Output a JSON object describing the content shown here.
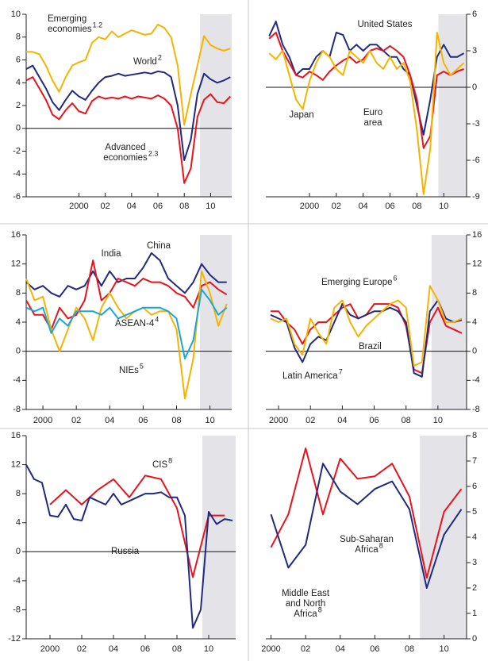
{
  "chart_data": [
    {
      "type": "line",
      "xlim": [
        1996,
        2011.6
      ],
      "ylim": [
        -6,
        10
      ],
      "yticks": [
        10,
        8,
        6,
        4,
        2,
        0,
        -2,
        -4,
        -6
      ],
      "y_axis_side": "left",
      "xticks": [
        2000,
        {
          "value": 2002,
          "label": "02"
        },
        {
          "value": 2004,
          "label": "04"
        },
        {
          "value": 2006,
          "label": "06"
        },
        {
          "value": 2008,
          "label": "08"
        },
        {
          "value": 2010,
          "label": "10"
        }
      ],
      "projection_shade": [
        2009.2,
        2011.6
      ],
      "zero_line": true,
      "x": [
        1996,
        1996.5,
        1997,
        1997.5,
        1998,
        1998.5,
        1999,
        1999.5,
        2000,
        2000.5,
        2001,
        2001.5,
        2002,
        2002.5,
        2003,
        2003.5,
        2004,
        2004.5,
        2005,
        2005.5,
        2006,
        2006.5,
        2007,
        2007.5,
        2008,
        2008.5,
        2009,
        2009.5,
        2010,
        2010.5,
        2011,
        2011.5
      ],
      "series": [
        {
          "name": "Emerging\neconomies",
          "note": "1.2",
          "color": "#f5b400",
          "values": [
            6.7,
            6.7,
            6.5,
            5.5,
            4.2,
            3.2,
            4.5,
            5.5,
            5.8,
            6.0,
            7.5,
            8.0,
            7.8,
            8.5,
            8.0,
            8.3,
            8.6,
            8.4,
            8.2,
            8.3,
            9.1,
            8.8,
            8.0,
            5.5,
            0.3,
            3.0,
            5.5,
            8.1,
            7.3,
            7.0,
            6.8,
            7.0
          ]
        },
        {
          "name": "World",
          "note": "2",
          "color": "#1f2a80",
          "values": [
            5.2,
            5.5,
            4.5,
            3.5,
            2.3,
            1.6,
            2.5,
            3.3,
            2.8,
            2.5,
            3.3,
            4.0,
            4.5,
            4.6,
            4.8,
            4.6,
            4.7,
            4.8,
            4.9,
            4.8,
            5.0,
            4.9,
            4.5,
            2.0,
            -2.8,
            -1.0,
            3.0,
            4.8,
            4.3,
            4.0,
            4.2,
            4.5
          ]
        },
        {
          "name": "Advanced\neconomies",
          "note": "2.3",
          "color": "#e8131d",
          "values": [
            4.2,
            4.5,
            3.5,
            2.5,
            1.2,
            0.8,
            1.6,
            2.2,
            1.5,
            1.3,
            2.4,
            2.8,
            2.6,
            2.7,
            2.6,
            2.8,
            2.6,
            2.8,
            2.7,
            2.6,
            2.9,
            2.6,
            2.0,
            0.0,
            -4.8,
            -3.5,
            1.0,
            2.5,
            3.0,
            2.3,
            2.2,
            2.8
          ]
        }
      ]
    },
    {
      "type": "line",
      "xlim": [
        1996.75,
        2011.7
      ],
      "ylim": [
        -9,
        6
      ],
      "yticks": [
        6,
        3,
        0,
        -3,
        -6,
        -9
      ],
      "y_axis_side": "right",
      "xticks": [
        2000,
        {
          "value": 2002,
          "label": "02"
        },
        {
          "value": 2004,
          "label": "04"
        },
        {
          "value": 2006,
          "label": "06"
        },
        {
          "value": 2008,
          "label": "08"
        },
        {
          "value": 2010,
          "label": "10"
        }
      ],
      "projection_shade": [
        2009.6,
        2011.7
      ],
      "zero_line": true,
      "x": [
        1997,
        1997.5,
        1998,
        1998.5,
        1999,
        1999.5,
        2000,
        2000.5,
        2001,
        2001.5,
        2002,
        2002.5,
        2003,
        2003.5,
        2004,
        2004.5,
        2005,
        2005.5,
        2006,
        2006.5,
        2007,
        2007.5,
        2008,
        2008.5,
        2009,
        2009.5,
        2010,
        2010.5,
        2011,
        2011.5
      ],
      "series": [
        {
          "name": "United States",
          "color": "#1f2a80",
          "values": [
            4.2,
            5.4,
            3.5,
            2.5,
            1.0,
            1.5,
            1.5,
            2.5,
            3.0,
            2.5,
            4.5,
            4.3,
            3.0,
            3.5,
            3.0,
            3.5,
            3.5,
            3.0,
            2.5,
            2.5,
            1.5,
            1.0,
            -1.5,
            -3.9,
            -1.0,
            2.5,
            3.5,
            2.5,
            2.5,
            2.8
          ]
        },
        {
          "name": "Euro\narea",
          "color": "#e8131d",
          "values": [
            4.0,
            4.5,
            3.0,
            2.0,
            1.0,
            0.8,
            1.3,
            1.0,
            0.6,
            1.3,
            1.8,
            2.2,
            2.5,
            2.0,
            2.3,
            3.0,
            3.2,
            3.0,
            3.4,
            3.0,
            2.5,
            1.0,
            -1.0,
            -5.0,
            -4.0,
            1.0,
            1.3,
            1.0,
            1.3,
            1.5
          ]
        },
        {
          "name": "Japan",
          "color": "#f5b400",
          "values": [
            2.8,
            2.3,
            3.0,
            1.0,
            -1.0,
            -1.8,
            0.5,
            2.0,
            3.0,
            2.5,
            1.5,
            1.0,
            3.0,
            2.5,
            2.0,
            3.0,
            2.0,
            1.5,
            2.5,
            1.5,
            2.0,
            0.5,
            -3.5,
            -8.8,
            -5.0,
            4.5,
            2.0,
            1.0,
            1.5,
            2.0
          ]
        }
      ]
    },
    {
      "type": "line",
      "xlim": [
        1999,
        2011.3
      ],
      "ylim": [
        -8,
        16
      ],
      "yticks": [
        16,
        12,
        8,
        4,
        0,
        -4,
        -8
      ],
      "y_axis_side": "left",
      "xticks": [
        2000,
        {
          "value": 2002,
          "label": "02"
        },
        {
          "value": 2004,
          "label": "04"
        },
        {
          "value": 2006,
          "label": "06"
        },
        {
          "value": 2008,
          "label": "08"
        },
        {
          "value": 2010,
          "label": "10"
        }
      ],
      "projection_shade": [
        2009.4,
        2011.3
      ],
      "zero_line": true,
      "x": [
        1999,
        1999.5,
        2000,
        2000.5,
        2001,
        2001.5,
        2002,
        2002.5,
        2003,
        2003.5,
        2004,
        2004.5,
        2005,
        2005.5,
        2006,
        2006.5,
        2007,
        2007.5,
        2008,
        2008.5,
        2009,
        2009.5,
        2010,
        2010.5,
        2011
      ],
      "series": [
        {
          "name": "China",
          "color": "#1f2a80",
          "values": [
            9.5,
            8.5,
            9.0,
            8.0,
            7.5,
            9.0,
            8.5,
            9.0,
            11.0,
            9.0,
            11.0,
            9.5,
            10.0,
            10.0,
            11.5,
            13.5,
            12.5,
            10.0,
            9.0,
            8.0,
            9.5,
            12.0,
            10.5,
            9.5,
            9.5
          ]
        },
        {
          "name": "India",
          "color": "#e8131d",
          "values": [
            7.0,
            5.0,
            5.0,
            3.0,
            6.0,
            4.5,
            5.0,
            7.0,
            12.5,
            7.0,
            8.0,
            10.0,
            9.5,
            9.0,
            10.0,
            9.5,
            9.5,
            9.0,
            8.0,
            7.5,
            6.0,
            9.0,
            9.5,
            8.5,
            7.8
          ]
        },
        {
          "name": "NIEs",
          "note": "5",
          "color": "#f5b400",
          "values": [
            10.0,
            7.0,
            7.5,
            3.0,
            0.0,
            3.0,
            6.0,
            4.5,
            1.5,
            6.0,
            8.0,
            6.0,
            4.5,
            5.5,
            6.0,
            5.0,
            5.5,
            5.5,
            3.0,
            -6.5,
            -1.0,
            11.0,
            8.0,
            3.5,
            6.5
          ]
        },
        {
          "name": "ASEAN-4",
          "note": "4",
          "color": "#1aa7d8",
          "values": [
            6.0,
            5.5,
            6.0,
            2.5,
            4.5,
            3.5,
            5.5,
            5.5,
            5.5,
            5.0,
            6.0,
            4.5,
            5.0,
            5.5,
            6.0,
            6.0,
            6.0,
            5.5,
            4.5,
            -1.0,
            1.5,
            8.5,
            7.0,
            5.0,
            6.0
          ]
        }
      ]
    },
    {
      "type": "line",
      "xlim": [
        1999.2,
        2011.8
      ],
      "ylim": [
        -8,
        16
      ],
      "yticks": [
        16,
        12,
        8,
        4,
        0,
        -4,
        -8
      ],
      "y_axis_side": "right",
      "xticks": [
        2000,
        {
          "value": 2002,
          "label": "02"
        },
        {
          "value": 2004,
          "label": "04"
        },
        {
          "value": 2006,
          "label": "06"
        },
        {
          "value": 2008,
          "label": "08"
        },
        {
          "value": 2010,
          "label": "10"
        }
      ],
      "projection_shade": [
        2009.6,
        2011.8
      ],
      "zero_line": true,
      "x": [
        1999.5,
        2000,
        2000.5,
        2001,
        2001.5,
        2002,
        2002.5,
        2003,
        2003.5,
        2004,
        2004.5,
        2005,
        2005.5,
        2006,
        2006.5,
        2007,
        2007.5,
        2008,
        2008.5,
        2009,
        2009.5,
        2010,
        2010.5,
        2011,
        2011.5
      ],
      "series": [
        {
          "name": "Emerging Europe",
          "note": "6",
          "color": "#e8131d",
          "values": [
            5.5,
            5.5,
            4.0,
            3.0,
            1.0,
            3.0,
            4.0,
            4.0,
            5.0,
            6.0,
            6.5,
            4.5,
            5.0,
            6.5,
            6.5,
            6.5,
            6.0,
            3.5,
            -2.5,
            -3.0,
            4.0,
            6.0,
            3.5,
            3.0,
            2.5
          ]
        },
        {
          "name": "Latin America",
          "note": "7",
          "color": "#1f2a80",
          "values": [
            5.0,
            4.5,
            4.0,
            0.5,
            -1.5,
            1.0,
            2.0,
            1.5,
            4.0,
            6.5,
            5.0,
            4.5,
            5.0,
            5.5,
            5.5,
            6.0,
            5.5,
            4.0,
            -3.0,
            -3.5,
            5.5,
            7.0,
            4.5,
            4.0,
            4.3
          ]
        },
        {
          "name": "Brazil",
          "color": "#f5b400",
          "values": [
            4.5,
            4.0,
            4.5,
            1.0,
            -0.5,
            4.5,
            2.5,
            1.0,
            6.0,
            7.0,
            4.0,
            2.0,
            3.5,
            4.5,
            5.5,
            6.5,
            7.0,
            6.0,
            -2.0,
            -1.5,
            9.0,
            7.0,
            4.0,
            4.0,
            4.5
          ]
        }
      ]
    },
    {
      "type": "line",
      "xlim": [
        1998.5,
        2011.7
      ],
      "ylim": [
        -12,
        16
      ],
      "yticks": [
        16,
        12,
        8,
        4,
        0,
        -4,
        -8,
        -12
      ],
      "y_axis_side": "left",
      "xticks": [
        2000,
        {
          "value": 2002,
          "label": "02"
        },
        {
          "value": 2004,
          "label": "04"
        },
        {
          "value": 2006,
          "label": "06"
        },
        {
          "value": 2008,
          "label": "08"
        },
        {
          "value": 2010,
          "label": "10"
        }
      ],
      "projection_shade": [
        2009.6,
        2011.7
      ],
      "zero_line": true,
      "x": [
        1998.5,
        1999,
        1999.5,
        2000,
        2000.5,
        2001,
        2001.5,
        2002,
        2002.5,
        2003,
        2003.5,
        2004,
        2004.5,
        2005,
        2005.5,
        2006,
        2006.5,
        2007,
        2007.5,
        2008,
        2008.5,
        2009,
        2009.5,
        2010,
        2010.5,
        2011,
        2011.5
      ],
      "series": [
        {
          "name": "CIS",
          "note": "8",
          "color": "#e8131d",
          "x": [
            2000,
            2001,
            2002,
            2003,
            2004,
            2005,
            2006,
            2007,
            2008,
            2009,
            2010,
            2011
          ],
          "values": [
            6.5,
            8.5,
            6.5,
            8.5,
            10.0,
            7.5,
            10.5,
            10.0,
            6.0,
            -3.5,
            5.0,
            5.0
          ]
        },
        {
          "name": "Russia",
          "color": "#1f2a80",
          "values": [
            12.0,
            10.0,
            9.5,
            5.0,
            4.8,
            6.5,
            4.5,
            4.3,
            7.5,
            7.0,
            6.5,
            8.0,
            6.5,
            7.0,
            7.5,
            8.0,
            8.0,
            8.2,
            7.5,
            7.5,
            5.0,
            -10.5,
            -8.0,
            5.5,
            3.8,
            4.5,
            4.3
          ]
        }
      ]
    },
    {
      "type": "line",
      "xlim": [
        1999.7,
        2011.3
      ],
      "ylim": [
        0,
        8
      ],
      "yticks": [
        8,
        7,
        6,
        5,
        4,
        3,
        2,
        1,
        0
      ],
      "y_axis_side": "right",
      "xticks": [
        2000,
        {
          "value": 2002,
          "label": "02"
        },
        {
          "value": 2004,
          "label": "04"
        },
        {
          "value": 2006,
          "label": "06"
        },
        {
          "value": 2008,
          "label": "08"
        },
        {
          "value": 2010,
          "label": "10"
        }
      ],
      "projection_shade": [
        2008.6,
        2011.3
      ],
      "zero_line": false,
      "x": [
        2000,
        2001,
        2002,
        2003,
        2004,
        2005,
        2006,
        2007,
        2008,
        2009,
        2010,
        2011
      ],
      "series": [
        {
          "name": "Sub-Saharan\nAfrica",
          "note": "8",
          "color": "#e8131d",
          "values": [
            3.6,
            4.9,
            7.5,
            4.9,
            7.1,
            6.3,
            6.4,
            6.9,
            5.6,
            2.4,
            5.0,
            5.9
          ]
        },
        {
          "name": "Middle East\nand North\nAfrica",
          "note": "8",
          "color": "#1f2a80",
          "values": [
            4.9,
            2.8,
            3.7,
            6.9,
            5.8,
            5.3,
            5.9,
            6.2,
            5.1,
            2.0,
            4.1,
            5.1
          ]
        }
      ]
    }
  ]
}
